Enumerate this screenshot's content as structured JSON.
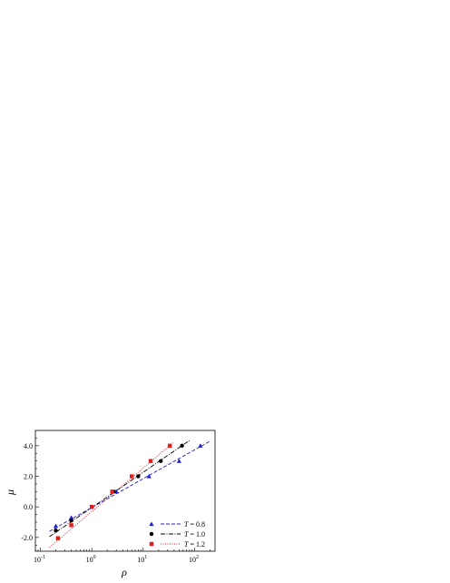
{
  "chart_data": {
    "type": "scatter",
    "xlabel": "ρ",
    "ylabel": "μ",
    "x_scale": "log",
    "xlim": [
      0.08,
      250
    ],
    "ylim": [
      -2.9,
      5.0
    ],
    "x_ticks": [
      {
        "value": 0.1,
        "base": "10",
        "exp": "-1"
      },
      {
        "value": 1,
        "base": "10",
        "exp": "0"
      },
      {
        "value": 10,
        "base": "10",
        "exp": "1"
      },
      {
        "value": 100,
        "base": "10",
        "exp": "2"
      }
    ],
    "y_ticks": [
      {
        "value": -2,
        "label": "-2.0"
      },
      {
        "value": 0,
        "label": "0.0"
      },
      {
        "value": 2,
        "label": "2.0"
      },
      {
        "value": 4,
        "label": "4.0"
      }
    ],
    "legend_position": "bottom-right",
    "series": [
      {
        "name": "T = 0.8",
        "name_var": "T",
        "name_rest": " = 0.8",
        "marker": "triangle",
        "line_style": "dashed",
        "color": "#1f1fd6",
        "points": [
          [
            0.2,
            -1.25
          ],
          [
            0.4,
            -0.7
          ],
          [
            1.0,
            0.0
          ],
          [
            3.0,
            1.0
          ],
          [
            13.0,
            2.0
          ],
          [
            50.0,
            3.0
          ],
          [
            130.0,
            4.0
          ]
        ],
        "fit_line": [
          [
            0.15,
            -1.6
          ],
          [
            200,
            4.3
          ]
        ]
      },
      {
        "name": "T = 1.0",
        "name_var": "T",
        "name_rest": " = 1.0",
        "marker": "circle",
        "line_style": "dash-dot",
        "color": "#000000",
        "points": [
          [
            0.2,
            -1.55
          ],
          [
            0.4,
            -0.9
          ],
          [
            1.0,
            0.0
          ],
          [
            2.7,
            1.0
          ],
          [
            8.0,
            2.0
          ],
          [
            22.0,
            3.0
          ],
          [
            57.0,
            4.0
          ]
        ],
        "fit_line": [
          [
            0.15,
            -1.95
          ],
          [
            80,
            4.35
          ]
        ]
      },
      {
        "name": "T = 1.2",
        "name_var": "T",
        "name_rest": " = 1.2",
        "marker": "square",
        "line_style": "dotted",
        "color": "#e01c1c",
        "points": [
          [
            0.22,
            -2.05
          ],
          [
            0.4,
            -1.2
          ],
          [
            1.0,
            0.0
          ],
          [
            2.5,
            1.0
          ],
          [
            6.0,
            2.0
          ],
          [
            14.0,
            3.0
          ],
          [
            33.0,
            4.0
          ]
        ],
        "fit_line": [
          [
            0.15,
            -2.65
          ],
          [
            40,
            4.25
          ]
        ]
      }
    ]
  }
}
